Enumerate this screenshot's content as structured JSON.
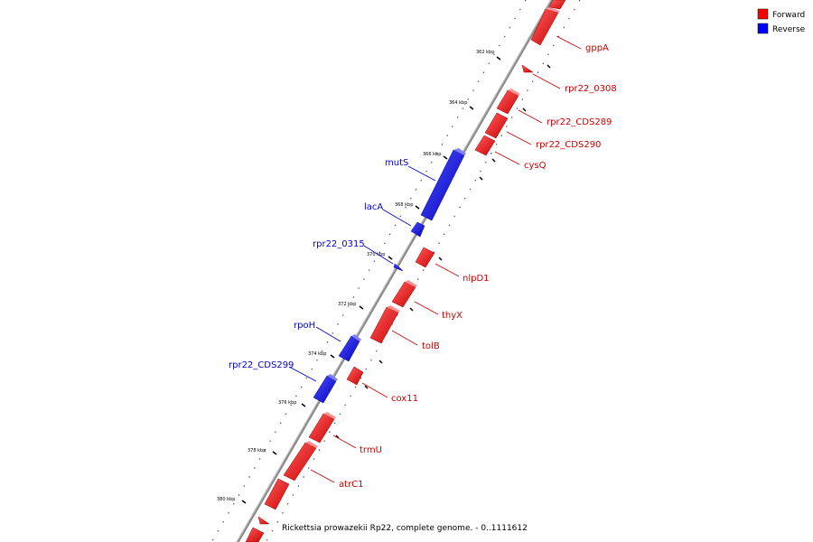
{
  "legend": [
    {
      "label": "Forward",
      "color": "#ff0000"
    },
    {
      "label": "Reverse",
      "color": "#0000ff"
    }
  ],
  "caption": "Rickettsia prowazekii Rp22, complete genome. - 0..1111612",
  "ticks": [
    "362 kbp",
    "364 kbp",
    "366 kbp",
    "368 kbp",
    "370 kbp",
    "372 kbp",
    "374 kbp",
    "376 kbp",
    "378 kbp",
    "380 kbp"
  ],
  "genes": [
    {
      "name": "gppA",
      "strand": "forward"
    },
    {
      "name": "rpr22_0308",
      "strand": "forward"
    },
    {
      "name": "rpr22_CDS289",
      "strand": "forward"
    },
    {
      "name": "rpr22_CDS290",
      "strand": "forward"
    },
    {
      "name": "cysQ",
      "strand": "forward"
    },
    {
      "name": "mutS",
      "strand": "reverse"
    },
    {
      "name": "lacA",
      "strand": "reverse"
    },
    {
      "name": "rpr22_0315",
      "strand": "reverse"
    },
    {
      "name": "nlpD1",
      "strand": "forward"
    },
    {
      "name": "thyX",
      "strand": "forward"
    },
    {
      "name": "rpoH",
      "strand": "reverse"
    },
    {
      "name": "tolB",
      "strand": "forward"
    },
    {
      "name": "rpr22_CDS299",
      "strand": "reverse"
    },
    {
      "name": "cox11",
      "strand": "forward"
    },
    {
      "name": "trmU",
      "strand": "forward"
    },
    {
      "name": "atrC1",
      "strand": "forward"
    }
  ]
}
